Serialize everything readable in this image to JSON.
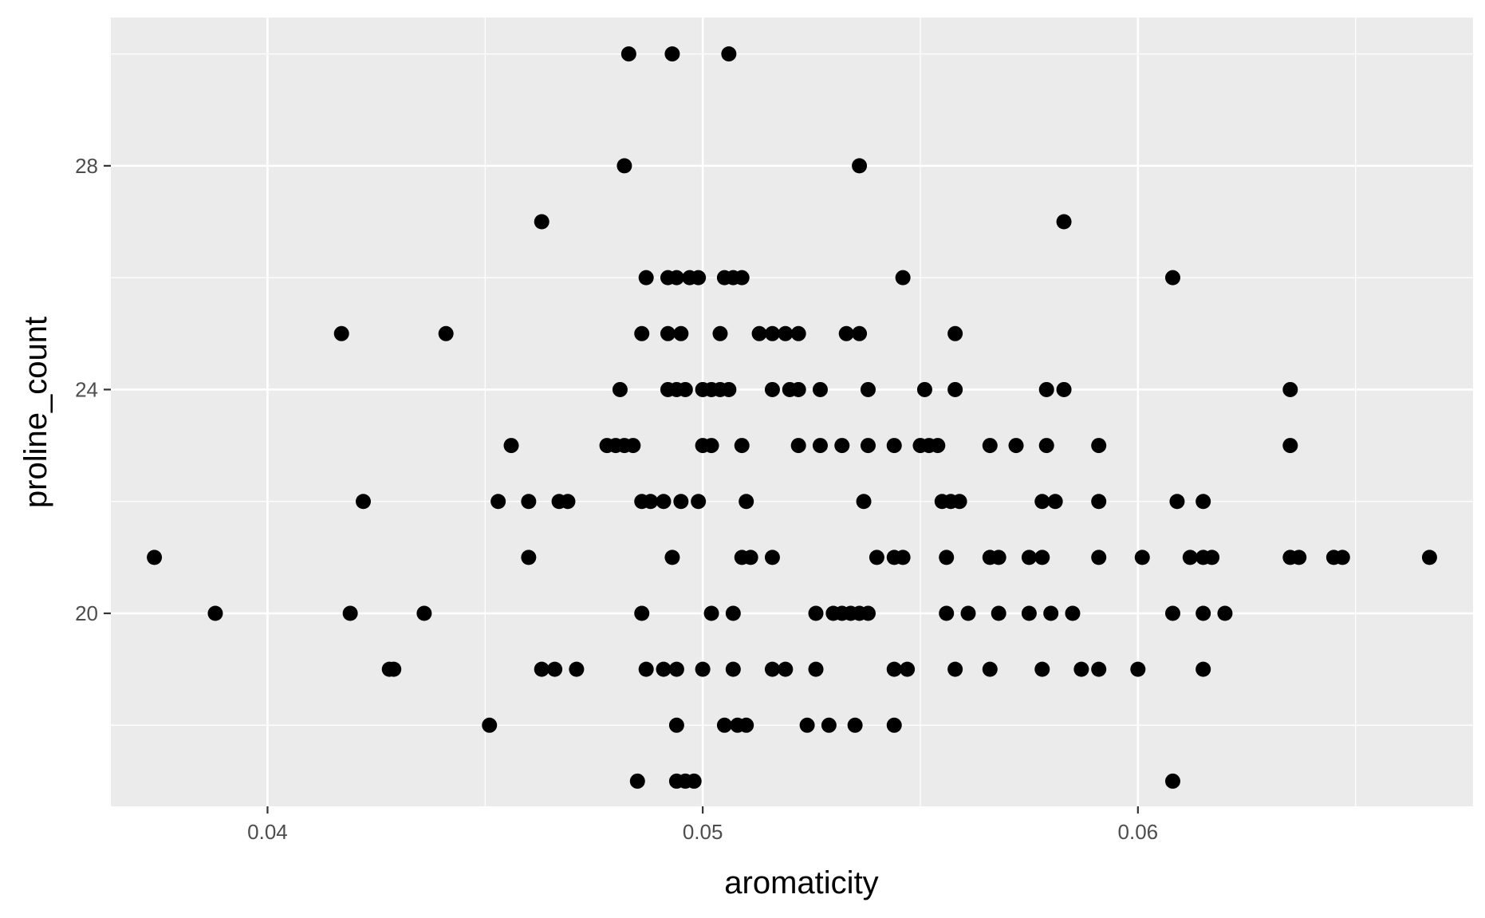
{
  "chart_data": {
    "type": "scatter",
    "title": "",
    "xlabel": "aromaticity",
    "ylabel": "proline_count",
    "xlim": [
      0.0364,
      0.0677
    ],
    "ylim": [
      16.55,
      30.65
    ],
    "x_ticks": [
      0.04,
      0.05,
      0.06
    ],
    "x_tick_labels": [
      "0.04",
      "0.05",
      "0.06"
    ],
    "y_ticks": [
      20,
      24,
      28
    ],
    "y_tick_labels": [
      "20",
      "24",
      "28"
    ],
    "x_minor_ticks": [
      0.045,
      0.055,
      0.065
    ],
    "y_minor_ticks": [
      18,
      22,
      26,
      30
    ],
    "grid": true,
    "background": "#EBEBEB",
    "grid_color": "#FFFFFF",
    "point_color": "#000000",
    "points": [
      [
        0.0483,
        30
      ],
      [
        0.0493,
        30
      ],
      [
        0.0506,
        30
      ],
      [
        0.0482,
        28
      ],
      [
        0.0536,
        28
      ],
      [
        0.0463,
        27
      ],
      [
        0.0583,
        27
      ],
      [
        0.0487,
        26
      ],
      [
        0.0492,
        26
      ],
      [
        0.0494,
        26
      ],
      [
        0.0497,
        26
      ],
      [
        0.0499,
        26
      ],
      [
        0.0505,
        26
      ],
      [
        0.0507,
        26
      ],
      [
        0.0509,
        26
      ],
      [
        0.0546,
        26
      ],
      [
        0.0608,
        26
      ],
      [
        0.0417,
        25
      ],
      [
        0.0441,
        25
      ],
      [
        0.0486,
        25
      ],
      [
        0.0492,
        25
      ],
      [
        0.0495,
        25
      ],
      [
        0.0504,
        25
      ],
      [
        0.0513,
        25
      ],
      [
        0.0516,
        25
      ],
      [
        0.0519,
        25
      ],
      [
        0.0522,
        25
      ],
      [
        0.0533,
        25
      ],
      [
        0.0536,
        25
      ],
      [
        0.0558,
        25
      ],
      [
        0.0481,
        24
      ],
      [
        0.0492,
        24
      ],
      [
        0.0494,
        24
      ],
      [
        0.0496,
        24
      ],
      [
        0.05,
        24
      ],
      [
        0.0502,
        24
      ],
      [
        0.0504,
        24
      ],
      [
        0.0506,
        24
      ],
      [
        0.0516,
        24
      ],
      [
        0.052,
        24
      ],
      [
        0.0522,
        24
      ],
      [
        0.0527,
        24
      ],
      [
        0.0538,
        24
      ],
      [
        0.0551,
        24
      ],
      [
        0.0558,
        24
      ],
      [
        0.0579,
        24
      ],
      [
        0.0583,
        24
      ],
      [
        0.0635,
        24
      ],
      [
        0.0456,
        23
      ],
      [
        0.0478,
        23
      ],
      [
        0.048,
        23
      ],
      [
        0.0482,
        23
      ],
      [
        0.0484,
        23
      ],
      [
        0.05,
        23
      ],
      [
        0.0502,
        23
      ],
      [
        0.0509,
        23
      ],
      [
        0.0522,
        23
      ],
      [
        0.0527,
        23
      ],
      [
        0.0532,
        23
      ],
      [
        0.0538,
        23
      ],
      [
        0.0544,
        23
      ],
      [
        0.055,
        23
      ],
      [
        0.0552,
        23
      ],
      [
        0.0554,
        23
      ],
      [
        0.0566,
        23
      ],
      [
        0.0572,
        23
      ],
      [
        0.0579,
        23
      ],
      [
        0.0591,
        23
      ],
      [
        0.0635,
        23
      ],
      [
        0.0422,
        22
      ],
      [
        0.0453,
        22
      ],
      [
        0.046,
        22
      ],
      [
        0.0467,
        22
      ],
      [
        0.0469,
        22
      ],
      [
        0.0486,
        22
      ],
      [
        0.0488,
        22
      ],
      [
        0.0491,
        22
      ],
      [
        0.0495,
        22
      ],
      [
        0.0499,
        22
      ],
      [
        0.051,
        22
      ],
      [
        0.0537,
        22
      ],
      [
        0.0555,
        22
      ],
      [
        0.0557,
        22
      ],
      [
        0.0559,
        22
      ],
      [
        0.0578,
        22
      ],
      [
        0.0581,
        22
      ],
      [
        0.0591,
        22
      ],
      [
        0.0609,
        22
      ],
      [
        0.0615,
        22
      ],
      [
        0.0374,
        21
      ],
      [
        0.046,
        21
      ],
      [
        0.0493,
        21
      ],
      [
        0.0509,
        21
      ],
      [
        0.0511,
        21
      ],
      [
        0.0516,
        21
      ],
      [
        0.054,
        21
      ],
      [
        0.0544,
        21
      ],
      [
        0.0546,
        21
      ],
      [
        0.0556,
        21
      ],
      [
        0.0566,
        21
      ],
      [
        0.0568,
        21
      ],
      [
        0.0575,
        21
      ],
      [
        0.0578,
        21
      ],
      [
        0.0591,
        21
      ],
      [
        0.0601,
        21
      ],
      [
        0.0612,
        21
      ],
      [
        0.0615,
        21
      ],
      [
        0.0617,
        21
      ],
      [
        0.0635,
        21
      ],
      [
        0.0637,
        21
      ],
      [
        0.0645,
        21
      ],
      [
        0.0647,
        21
      ],
      [
        0.0667,
        21
      ],
      [
        0.0388,
        20
      ],
      [
        0.0419,
        20
      ],
      [
        0.0436,
        20
      ],
      [
        0.0486,
        20
      ],
      [
        0.0502,
        20
      ],
      [
        0.0507,
        20
      ],
      [
        0.0526,
        20
      ],
      [
        0.053,
        20
      ],
      [
        0.0532,
        20
      ],
      [
        0.0534,
        20
      ],
      [
        0.0536,
        20
      ],
      [
        0.0538,
        20
      ],
      [
        0.0556,
        20
      ],
      [
        0.0561,
        20
      ],
      [
        0.0568,
        20
      ],
      [
        0.0575,
        20
      ],
      [
        0.058,
        20
      ],
      [
        0.0585,
        20
      ],
      [
        0.0608,
        20
      ],
      [
        0.0615,
        20
      ],
      [
        0.062,
        20
      ],
      [
        0.0428,
        19
      ],
      [
        0.0429,
        19
      ],
      [
        0.0463,
        19
      ],
      [
        0.0466,
        19
      ],
      [
        0.0471,
        19
      ],
      [
        0.0487,
        19
      ],
      [
        0.0491,
        19
      ],
      [
        0.0494,
        19
      ],
      [
        0.05,
        19
      ],
      [
        0.0507,
        19
      ],
      [
        0.0516,
        19
      ],
      [
        0.0519,
        19
      ],
      [
        0.0526,
        19
      ],
      [
        0.0544,
        19
      ],
      [
        0.0547,
        19
      ],
      [
        0.0558,
        19
      ],
      [
        0.0566,
        19
      ],
      [
        0.0578,
        19
      ],
      [
        0.0587,
        19
      ],
      [
        0.0591,
        19
      ],
      [
        0.06,
        19
      ],
      [
        0.0615,
        19
      ],
      [
        0.0451,
        18
      ],
      [
        0.0494,
        18
      ],
      [
        0.0505,
        18
      ],
      [
        0.0508,
        18
      ],
      [
        0.051,
        18
      ],
      [
        0.0524,
        18
      ],
      [
        0.0529,
        18
      ],
      [
        0.0535,
        18
      ],
      [
        0.0544,
        18
      ],
      [
        0.0485,
        17
      ],
      [
        0.0494,
        17
      ],
      [
        0.0496,
        17
      ],
      [
        0.0498,
        17
      ],
      [
        0.0608,
        17
      ]
    ]
  }
}
